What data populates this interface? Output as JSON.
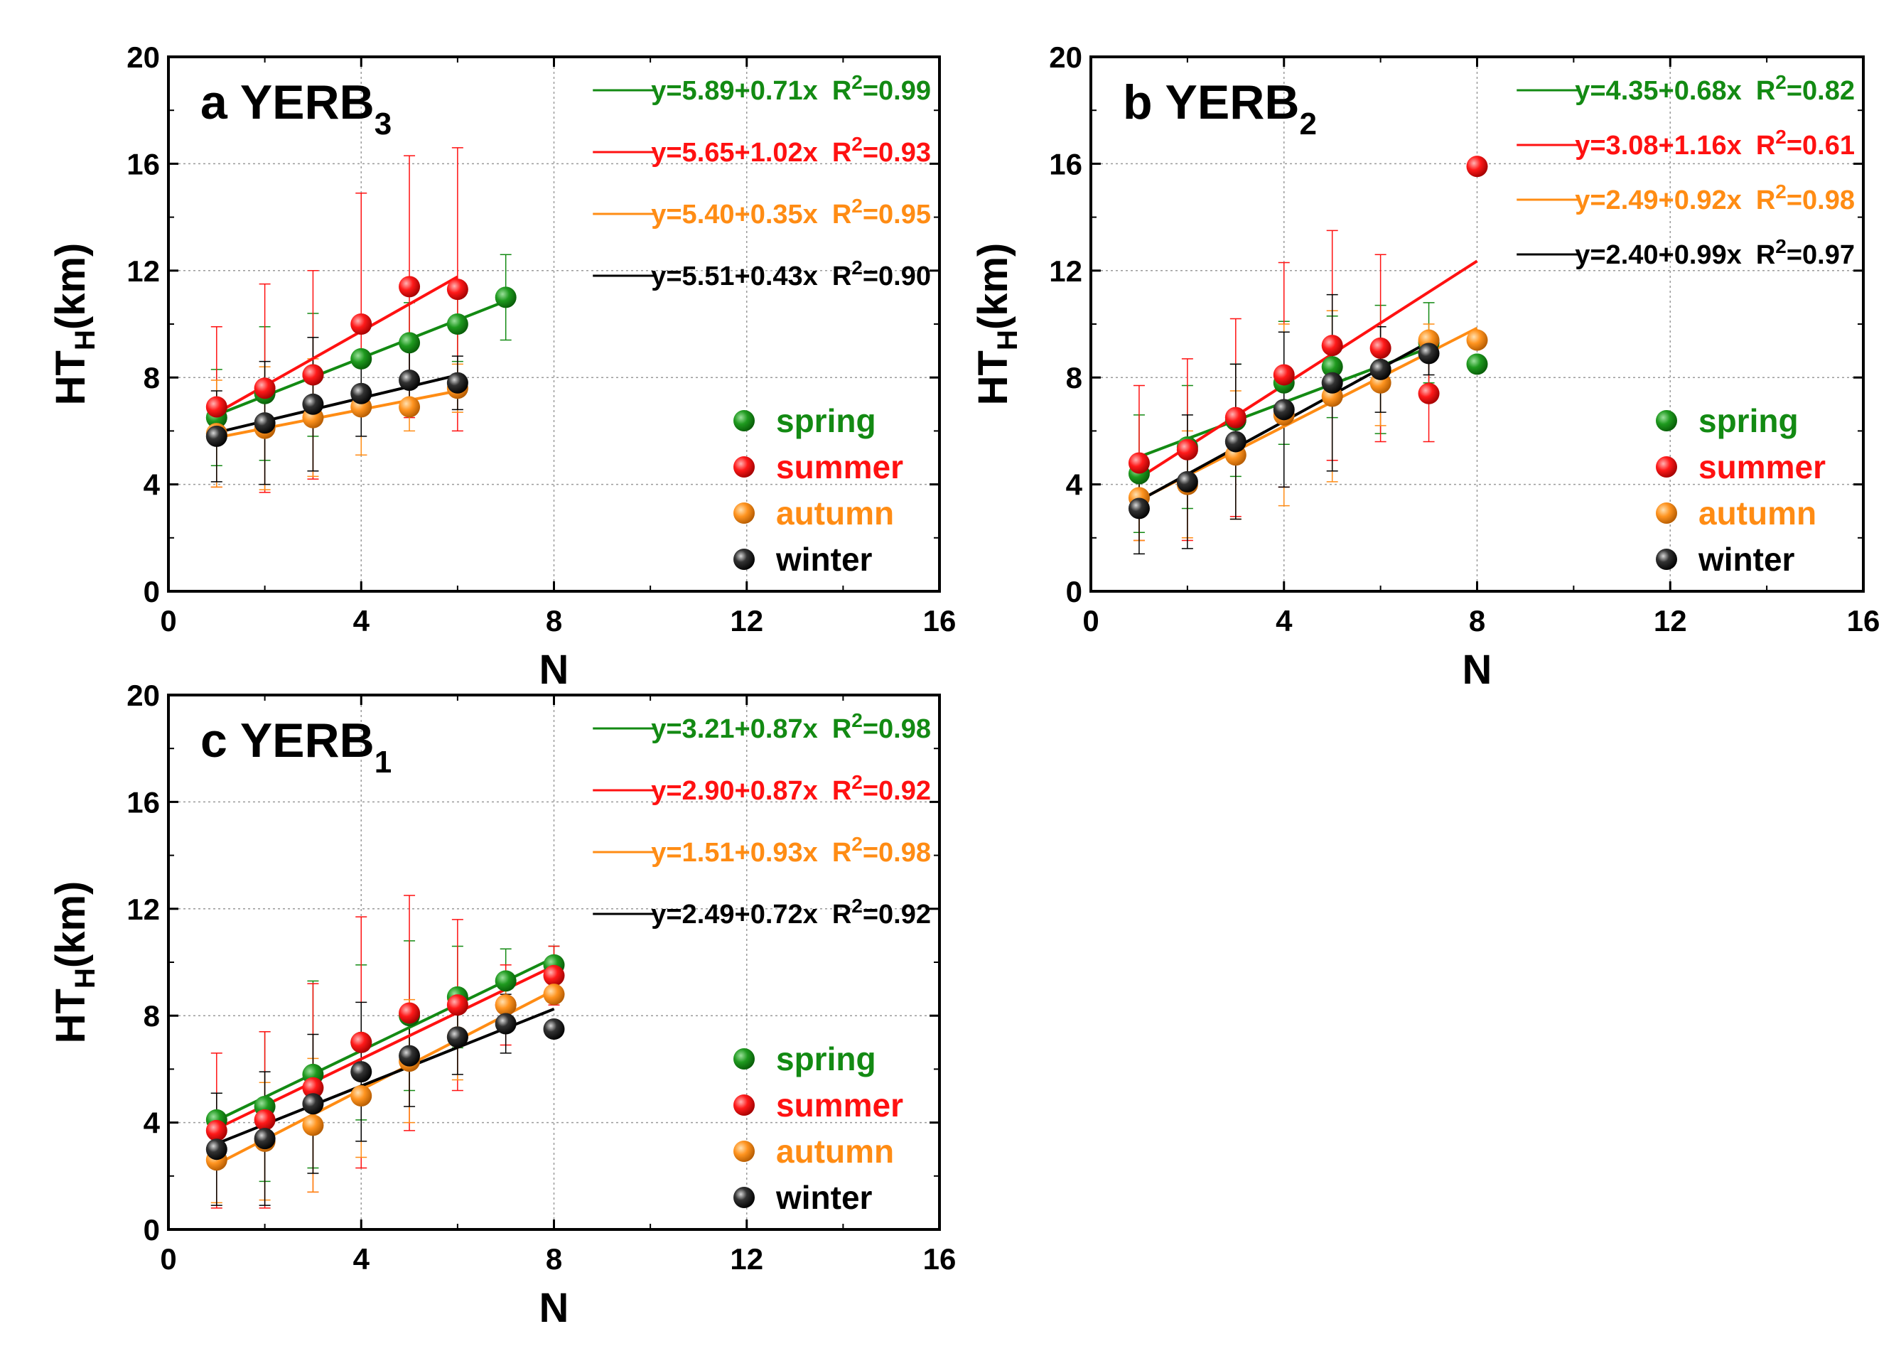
{
  "chart_data": [
    {
      "type": "scatter",
      "panel_letter": "a",
      "panel_name": "YERB",
      "panel_sub": "3",
      "xlabel": "N",
      "ylabel_main": "HT",
      "ylabel_sub": "H",
      "ylabel_unit": "(km)",
      "xlim": [
        0,
        16
      ],
      "ylim": [
        0,
        20
      ],
      "xticks": [
        "0",
        "4",
        "8",
        "12",
        "16"
      ],
      "yticks": [
        "0",
        "4",
        "8",
        "12",
        "16",
        "20"
      ],
      "grid": true,
      "fits": [
        {
          "season": "spring",
          "color": "#138a13",
          "eq": "y=5.89+0.71x",
          "r2_label": "R",
          "r2_sup": "2",
          "r2_value": "=0.99",
          "intercept": 5.89,
          "slope": 0.71,
          "x_range": [
            1,
            7
          ]
        },
        {
          "season": "summer",
          "color": "#ff1111",
          "eq": "y=5.65+1.02x",
          "r2_label": "R",
          "r2_sup": "2",
          "r2_value": "=0.93",
          "intercept": 5.65,
          "slope": 1.02,
          "x_range": [
            1,
            6
          ]
        },
        {
          "season": "autumn",
          "color": "#ff8c14",
          "eq": "y=5.40+0.35x",
          "r2_label": "R",
          "r2_sup": "2",
          "r2_value": "=0.95",
          "intercept": 5.4,
          "slope": 0.35,
          "x_range": [
            1,
            6
          ]
        },
        {
          "season": "winter",
          "color": "#000000",
          "eq": "y=5.51+0.43x",
          "r2_label": "R",
          "r2_sup": "2",
          "r2_value": "=0.90",
          "intercept": 5.51,
          "slope": 0.43,
          "x_range": [
            1,
            6
          ]
        }
      ],
      "series": [
        {
          "name": "spring",
          "color": "#138a13",
          "x": [
            1,
            2,
            3,
            4,
            5,
            6,
            7
          ],
          "y": [
            6.5,
            7.4,
            8.1,
            8.7,
            9.3,
            10.0,
            11.0
          ],
          "err": [
            1.8,
            2.5,
            2.3,
            1.5,
            1.5,
            1.4,
            1.6
          ]
        },
        {
          "name": "summer",
          "color": "#ff1111",
          "x": [
            1,
            2,
            3,
            4,
            5,
            6
          ],
          "y": [
            6.9,
            7.6,
            8.1,
            10.0,
            11.4,
            11.3
          ],
          "err": [
            3.0,
            3.9,
            3.9,
            4.9,
            4.9,
            5.3
          ]
        },
        {
          "name": "autumn",
          "color": "#ff8c14",
          "x": [
            1,
            2,
            3,
            4,
            5,
            6
          ],
          "y": [
            5.9,
            6.1,
            6.5,
            6.9,
            6.9,
            7.6
          ],
          "err": [
            2.0,
            2.3,
            2.2,
            1.8,
            0.9,
            0.9
          ]
        },
        {
          "name": "winter",
          "color": "#000000",
          "x": [
            1,
            2,
            3,
            4,
            5,
            6
          ],
          "y": [
            5.8,
            6.3,
            7.0,
            7.4,
            7.9,
            7.8
          ],
          "err": [
            1.7,
            2.3,
            2.5,
            1.6,
            1.1,
            1.0
          ]
        }
      ],
      "legend": [
        "spring",
        "summer",
        "autumn",
        "winter"
      ]
    },
    {
      "type": "scatter",
      "panel_letter": "b",
      "panel_name": "YERB",
      "panel_sub": "2",
      "xlabel": "N",
      "ylabel_main": "HT",
      "ylabel_sub": "H",
      "ylabel_unit": "(km)",
      "xlim": [
        0,
        16
      ],
      "ylim": [
        0,
        20
      ],
      "xticks": [
        "0",
        "4",
        "8",
        "12",
        "16"
      ],
      "yticks": [
        "0",
        "4",
        "8",
        "12",
        "16",
        "20"
      ],
      "grid": true,
      "fits": [
        {
          "season": "spring",
          "color": "#138a13",
          "eq": "y=4.35+0.68x",
          "r2_label": "R",
          "r2_sup": "2",
          "r2_value": "=0.82",
          "intercept": 4.35,
          "slope": 0.68,
          "x_range": [
            1,
            7
          ]
        },
        {
          "season": "summer",
          "color": "#ff1111",
          "eq": "y=3.08+1.16x",
          "r2_label": "R",
          "r2_sup": "2",
          "r2_value": "=0.61",
          "intercept": 3.08,
          "slope": 1.16,
          "x_range": [
            1,
            8
          ]
        },
        {
          "season": "autumn",
          "color": "#ff8c14",
          "eq": "y=2.49+0.92x",
          "r2_label": "R",
          "r2_sup": "2",
          "r2_value": "=0.98",
          "intercept": 2.49,
          "slope": 0.92,
          "x_range": [
            1,
            8
          ]
        },
        {
          "season": "winter",
          "color": "#000000",
          "eq": "y=2.40+0.99x",
          "r2_label": "R",
          "r2_sup": "2",
          "r2_value": "=0.97",
          "intercept": 2.4,
          "slope": 0.99,
          "x_range": [
            1,
            7
          ]
        }
      ],
      "series": [
        {
          "name": "spring",
          "color": "#138a13",
          "x": [
            1,
            2,
            3,
            4,
            5,
            6,
            7,
            8
          ],
          "y": [
            4.4,
            5.4,
            6.4,
            7.8,
            8.4,
            8.3,
            9.3,
            8.5
          ],
          "err": [
            2.2,
            2.3,
            2.1,
            2.3,
            1.9,
            2.4,
            1.5,
            0.0
          ]
        },
        {
          "name": "summer",
          "color": "#ff1111",
          "x": [
            1,
            2,
            3,
            4,
            5,
            6,
            7,
            8
          ],
          "y": [
            4.8,
            5.3,
            6.5,
            8.1,
            9.2,
            9.1,
            7.4,
            15.9
          ],
          "err": [
            2.9,
            3.4,
            3.7,
            4.2,
            4.3,
            3.5,
            1.8,
            0.0
          ]
        },
        {
          "name": "autumn",
          "color": "#ff8c14",
          "x": [
            1,
            2,
            3,
            4,
            5,
            6,
            7,
            8
          ],
          "y": [
            3.5,
            4.0,
            5.1,
            6.6,
            7.3,
            7.8,
            9.4,
            9.4
          ],
          "err": [
            1.6,
            2.0,
            2.4,
            3.4,
            3.2,
            1.6,
            0.6,
            0.0
          ]
        },
        {
          "name": "winter",
          "color": "#000000",
          "x": [
            1,
            2,
            3,
            4,
            5,
            6,
            7
          ],
          "y": [
            3.1,
            4.1,
            5.6,
            6.8,
            7.8,
            8.3,
            8.9
          ],
          "err": [
            1.7,
            2.5,
            2.9,
            2.9,
            3.3,
            1.6,
            0.8
          ]
        }
      ],
      "legend": [
        "spring",
        "summer",
        "autumn",
        "winter"
      ]
    },
    {
      "type": "scatter",
      "panel_letter": "c",
      "panel_name": "YERB",
      "panel_sub": "1",
      "xlabel": "N",
      "ylabel_main": "HT",
      "ylabel_sub": "H",
      "ylabel_unit": "(km)",
      "xlim": [
        0,
        16
      ],
      "ylim": [
        0,
        20
      ],
      "xticks": [
        "0",
        "4",
        "8",
        "12",
        "16"
      ],
      "yticks": [
        "0",
        "4",
        "8",
        "12",
        "16",
        "20"
      ],
      "grid": true,
      "fits": [
        {
          "season": "spring",
          "color": "#138a13",
          "eq": "y=3.21+0.87x",
          "r2_label": "R",
          "r2_sup": "2",
          "r2_value": "=0.98",
          "intercept": 3.21,
          "slope": 0.87,
          "x_range": [
            1,
            8
          ]
        },
        {
          "season": "summer",
          "color": "#ff1111",
          "eq": "y=2.90+0.87x",
          "r2_label": "R",
          "r2_sup": "2",
          "r2_value": "=0.92",
          "intercept": 2.9,
          "slope": 0.87,
          "x_range": [
            1,
            8
          ]
        },
        {
          "season": "autumn",
          "color": "#ff8c14",
          "eq": "y=1.51+0.93x",
          "r2_label": "R",
          "r2_sup": "2",
          "r2_value": "=0.98",
          "intercept": 1.51,
          "slope": 0.93,
          "x_range": [
            1,
            8
          ]
        },
        {
          "season": "winter",
          "color": "#000000",
          "eq": "y=2.49+0.72x",
          "r2_label": "R",
          "r2_sup": "2",
          "r2_value": "=0.92",
          "intercept": 2.49,
          "slope": 0.72,
          "x_range": [
            1,
            8
          ]
        }
      ],
      "series": [
        {
          "name": "spring",
          "color": "#138a13",
          "x": [
            1,
            2,
            3,
            4,
            5,
            6,
            7,
            8
          ],
          "y": [
            4.1,
            4.6,
            5.8,
            7.0,
            8.0,
            8.7,
            9.3,
            9.9
          ],
          "err": [
            1.0,
            2.8,
            3.5,
            2.9,
            2.8,
            1.9,
            1.2,
            0.7
          ]
        },
        {
          "name": "summer",
          "color": "#ff1111",
          "x": [
            1,
            2,
            3,
            4,
            5,
            6,
            7,
            8
          ],
          "y": [
            3.7,
            4.1,
            5.3,
            7.0,
            8.1,
            8.4,
            8.4,
            9.5
          ],
          "err": [
            2.9,
            3.3,
            3.9,
            4.7,
            4.4,
            3.2,
            1.5,
            1.1
          ]
        },
        {
          "name": "autumn",
          "color": "#ff8c14",
          "x": [
            1,
            2,
            3,
            4,
            5,
            6,
            7,
            8
          ],
          "y": [
            2.6,
            3.3,
            3.9,
            5.0,
            6.3,
            7.2,
            8.4,
            8.8
          ],
          "err": [
            1.6,
            2.2,
            2.5,
            2.3,
            2.3,
            1.6,
            0.7,
            0.3
          ]
        },
        {
          "name": "winter",
          "color": "#000000",
          "x": [
            1,
            2,
            3,
            4,
            5,
            6,
            7,
            8
          ],
          "y": [
            3.0,
            3.4,
            4.7,
            5.9,
            6.5,
            7.2,
            7.7,
            7.5
          ],
          "err": [
            2.1,
            2.5,
            2.6,
            2.6,
            1.9,
            1.4,
            1.1,
            0.3
          ]
        }
      ],
      "legend": [
        "spring",
        "summer",
        "autumn",
        "winter"
      ]
    }
  ]
}
